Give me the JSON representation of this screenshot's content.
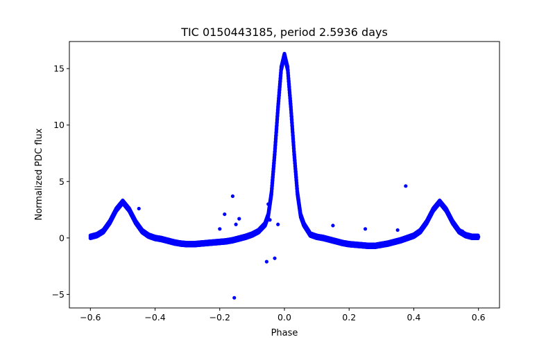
{
  "chart_data": {
    "type": "scatter",
    "title": "TIC 0150443185, period 2.5936 days",
    "xlabel": "Phase",
    "ylabel": "Normalized PDC flux",
    "xlim": [
      -0.665,
      0.665
    ],
    "ylim": [
      -6.2,
      17.4
    ],
    "xticks": [
      -0.6,
      -0.4,
      -0.2,
      0.0,
      0.2,
      0.4,
      0.6
    ],
    "xtick_labels": [
      "−0.6",
      "−0.4",
      "−0.2",
      "0.0",
      "0.2",
      "0.4",
      "0.6"
    ],
    "yticks": [
      -5,
      0,
      5,
      10,
      15
    ],
    "ytick_labels": [
      "−5",
      "0",
      "5",
      "10",
      "15"
    ],
    "grid": false,
    "marker_color": "#0000ff",
    "series": [
      {
        "x": [
          -0.6,
          -0.58,
          -0.56,
          -0.54,
          -0.52,
          -0.5,
          -0.48,
          -0.46,
          -0.44,
          -0.42,
          -0.4,
          -0.38,
          -0.36,
          -0.34,
          -0.32,
          -0.3,
          -0.28,
          -0.26,
          -0.24,
          -0.22,
          -0.2,
          -0.18,
          -0.16,
          -0.14,
          -0.12,
          -0.1,
          -0.08,
          -0.06,
          -0.05,
          -0.04,
          -0.03,
          -0.02,
          -0.01,
          0.0,
          0.01,
          0.02,
          0.03,
          0.04,
          0.05,
          0.06,
          0.08,
          0.1,
          0.12,
          0.14,
          0.16,
          0.18,
          0.2,
          0.22,
          0.24,
          0.26,
          0.28,
          0.3,
          0.32,
          0.34,
          0.36,
          0.38,
          0.4,
          0.42,
          0.44,
          0.46,
          0.48,
          0.5,
          0.52,
          0.54,
          0.56,
          0.58,
          0.6
        ],
        "y": [
          0.1,
          0.25,
          0.6,
          1.4,
          2.5,
          3.2,
          2.5,
          1.4,
          0.6,
          0.2,
          0.0,
          -0.1,
          -0.25,
          -0.4,
          -0.5,
          -0.55,
          -0.55,
          -0.5,
          -0.45,
          -0.4,
          -0.35,
          -0.3,
          -0.2,
          -0.05,
          0.1,
          0.3,
          0.6,
          1.2,
          2.0,
          4.0,
          7.5,
          11.5,
          15.0,
          16.2,
          15.0,
          11.5,
          7.5,
          4.0,
          2.0,
          1.2,
          0.3,
          0.1,
          0.0,
          -0.15,
          -0.3,
          -0.45,
          -0.55,
          -0.6,
          -0.65,
          -0.7,
          -0.7,
          -0.6,
          -0.5,
          -0.35,
          -0.2,
          0.0,
          0.2,
          0.6,
          1.4,
          2.5,
          3.2,
          2.5,
          1.4,
          0.6,
          0.25,
          0.1,
          0.1
        ]
      }
    ],
    "outliers": {
      "x": [
        -0.16,
        -0.155,
        -0.185,
        -0.15,
        -0.14,
        -0.055,
        -0.05,
        -0.03,
        -0.045,
        -0.02,
        0.375,
        0.465,
        -0.45,
        -0.2,
        0.15,
        0.25,
        0.35,
        0.55
      ],
      "y": [
        3.7,
        -5.3,
        2.1,
        1.2,
        1.7,
        -2.1,
        3.0,
        -1.8,
        1.6,
        1.2,
        4.6,
        2.6,
        2.6,
        0.8,
        1.1,
        0.8,
        0.7,
        0.6
      ]
    }
  }
}
